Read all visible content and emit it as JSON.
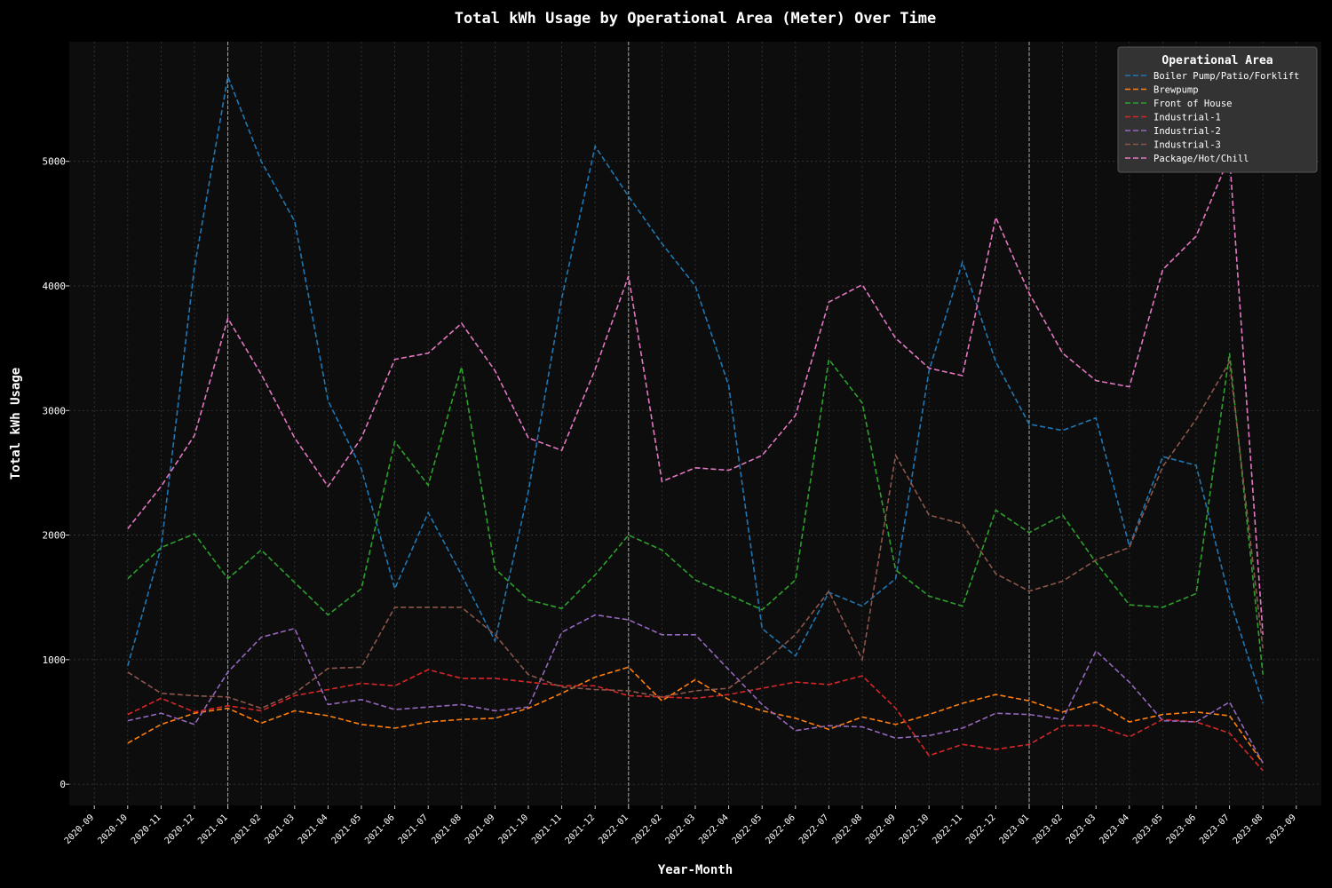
{
  "chart_data": {
    "type": "line",
    "title": "Total kWh Usage by Operational Area (Meter) Over Time",
    "xlabel": "Year-Month",
    "ylabel": "Total kWh Usage",
    "x_ticks": [
      "2020-09",
      "2020-10",
      "2020-11",
      "2020-12",
      "2021-01",
      "2021-02",
      "2021-03",
      "2021-04",
      "2021-05",
      "2021-06",
      "2021-07",
      "2021-08",
      "2021-09",
      "2021-10",
      "2021-11",
      "2021-12",
      "2022-01",
      "2022-02",
      "2022-03",
      "2022-04",
      "2022-05",
      "2022-06",
      "2022-07",
      "2022-08",
      "2022-09",
      "2022-10",
      "2022-11",
      "2022-12",
      "2023-01",
      "2023-02",
      "2023-03",
      "2023-04",
      "2023-05",
      "2023-06",
      "2023-07",
      "2023-08",
      "2023-09"
    ],
    "x": [
      "2020-10",
      "2020-11",
      "2020-12",
      "2021-01",
      "2021-02",
      "2021-03",
      "2021-04",
      "2021-05",
      "2021-06",
      "2021-07",
      "2021-08",
      "2021-09",
      "2021-10",
      "2021-11",
      "2021-12",
      "2022-01",
      "2022-02",
      "2022-03",
      "2022-04",
      "2022-05",
      "2022-06",
      "2022-07",
      "2022-08",
      "2022-09",
      "2022-10",
      "2022-11",
      "2022-12",
      "2023-01",
      "2023-02",
      "2023-03",
      "2023-04",
      "2023-05",
      "2023-06",
      "2023-07",
      "2023-08"
    ],
    "x_range": [
      "2020-09",
      "2023-09"
    ],
    "y_ticks": [
      0,
      1000,
      2000,
      3000,
      4000,
      5000
    ],
    "ylim": [
      -170,
      5960
    ],
    "year_markers": [
      "2021-01",
      "2022-01",
      "2023-01"
    ],
    "grid": true,
    "legend_title": "Operational Area",
    "legend_position": "top-right",
    "series": [
      {
        "name": "Boiler Pump/Patio/Forklift",
        "color": "#1f77b4",
        "values": [
          950,
          1900,
          4150,
          5680,
          5000,
          4520,
          3080,
          2530,
          1570,
          2180,
          1680,
          1150,
          2350,
          3900,
          5120,
          4720,
          4340,
          4000,
          3200,
          1250,
          1030,
          1540,
          1430,
          1650,
          3320,
          4190,
          3390,
          2890,
          2840,
          2940,
          1910,
          2630,
          2560,
          1490,
          650
        ]
      },
      {
        "name": "Brewpump",
        "color": "#ff7f0e",
        "values": [
          330,
          480,
          570,
          610,
          490,
          590,
          550,
          480,
          450,
          500,
          520,
          530,
          610,
          730,
          860,
          940,
          670,
          840,
          680,
          590,
          530,
          440,
          540,
          480,
          560,
          650,
          720,
          670,
          580,
          660,
          500,
          560,
          580,
          550,
          170
        ]
      },
      {
        "name": "Front of House",
        "color": "#2ca02c",
        "values": [
          1650,
          1900,
          2010,
          1650,
          1880,
          1620,
          1360,
          1570,
          2750,
          2400,
          3350,
          1730,
          1480,
          1410,
          1680,
          2000,
          1880,
          1640,
          1520,
          1400,
          1640,
          3410,
          3060,
          1720,
          1510,
          1430,
          2200,
          2020,
          2160,
          1780,
          1440,
          1420,
          1530,
          3460,
          880
        ]
      },
      {
        "name": "Industrial-1",
        "color": "#d62728",
        "values": [
          560,
          690,
          580,
          630,
          590,
          710,
          760,
          810,
          790,
          920,
          850,
          850,
          820,
          790,
          790,
          710,
          700,
          690,
          720,
          770,
          820,
          800,
          870,
          610,
          230,
          320,
          280,
          320,
          470,
          470,
          380,
          520,
          500,
          410,
          110
        ]
      },
      {
        "name": "Industrial-2",
        "color": "#9467bd",
        "values": [
          510,
          570,
          480,
          900,
          1180,
          1250,
          640,
          680,
          600,
          620,
          640,
          590,
          620,
          1220,
          1360,
          1320,
          1200,
          1200,
          920,
          640,
          430,
          470,
          460,
          370,
          390,
          450,
          570,
          560,
          520,
          1070,
          820,
          510,
          500,
          660,
          170
        ]
      },
      {
        "name": "Industrial-3",
        "color": "#8c564b",
        "values": [
          900,
          730,
          710,
          700,
          610,
          730,
          930,
          940,
          1420,
          1420,
          1420,
          1200,
          880,
          780,
          760,
          750,
          700,
          750,
          770,
          970,
          1200,
          1550,
          1000,
          2640,
          2160,
          2090,
          1690,
          1550,
          1630,
          1800,
          1900,
          2550,
          2930,
          3390,
          1090
        ]
      },
      {
        "name": "Package/Hot/Chill",
        "color": "#e377c2",
        "values": [
          2050,
          2390,
          2800,
          3740,
          3290,
          2780,
          2390,
          2780,
          3410,
          3460,
          3700,
          3320,
          2780,
          2680,
          3330,
          4080,
          2430,
          2540,
          2520,
          2640,
          2960,
          3870,
          4010,
          3580,
          3340,
          3280,
          4550,
          3940,
          3460,
          3240,
          3190,
          4130,
          4400,
          5040,
          1200
        ]
      }
    ]
  }
}
